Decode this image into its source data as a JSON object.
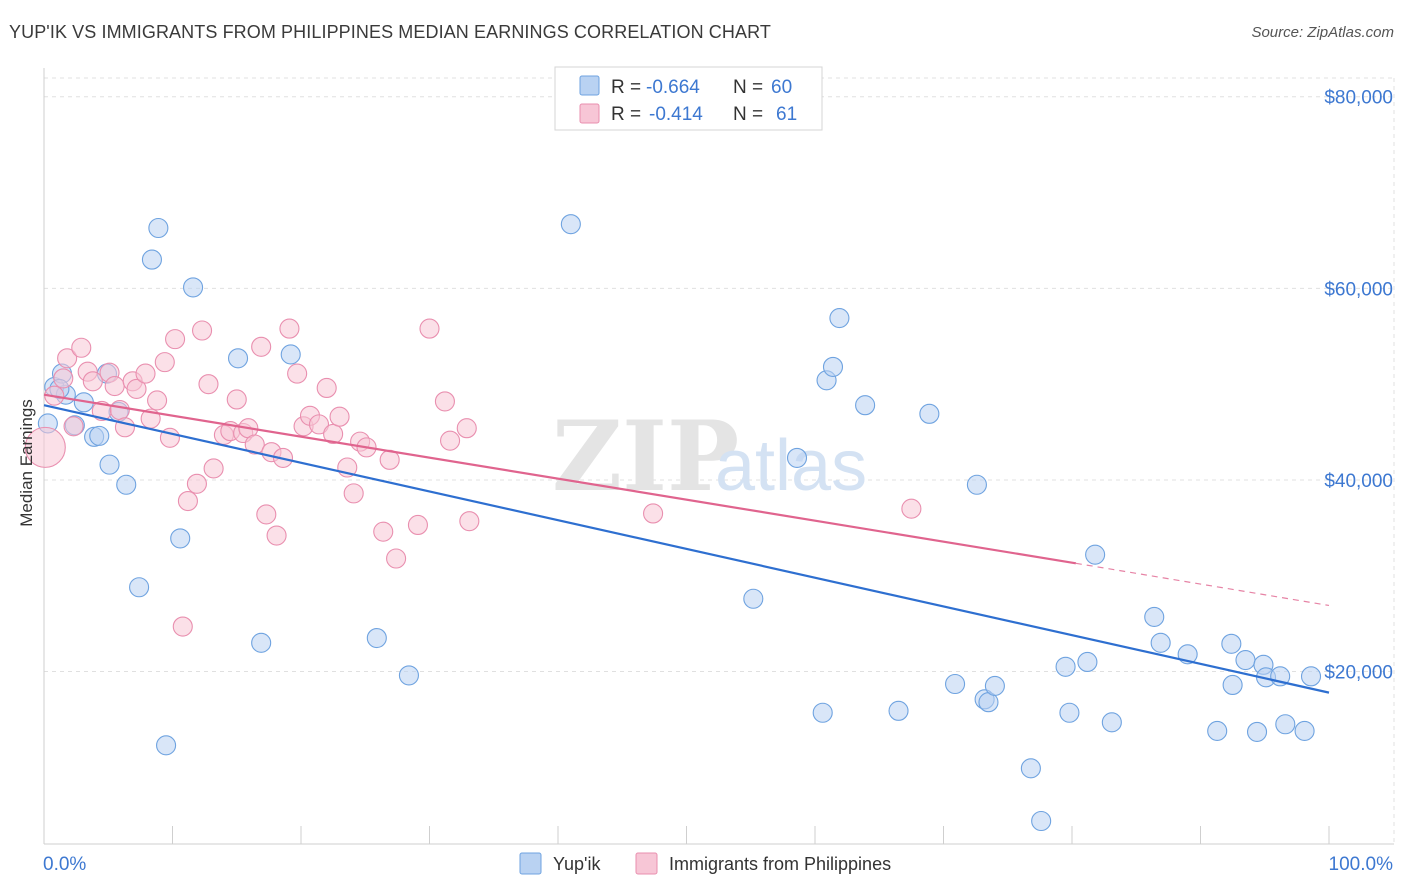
{
  "title": "YUP'IK VS IMMIGRANTS FROM PHILIPPINES MEDIAN EARNINGS CORRELATION CHART",
  "source": "Source: ZipAtlas.com",
  "watermark": {
    "zip": "ZIP",
    "atlas": "atlas"
  },
  "chart_data": {
    "type": "scatter",
    "xlabel": "",
    "ylabel": "Median Earnings",
    "xlim": [
      0,
      100
    ],
    "ylim": [
      2000,
      83000
    ],
    "x_tick_labels": [
      "0.0%",
      "100.0%"
    ],
    "y_ticks": [
      20000,
      40000,
      60000,
      80000
    ],
    "y_tick_labels": [
      "$20,000",
      "$40,000",
      "$60,000",
      "$80,000"
    ],
    "grid": true,
    "legend_position": "top-center",
    "legend": [
      {
        "r_label": "R =",
        "r_value": "-0.664",
        "n_label": "N =",
        "n_value": "60"
      },
      {
        "r_label": "R =",
        "r_value": "-0.414",
        "n_label": "N =",
        "n_value": "61"
      }
    ],
    "series": [
      {
        "name": "Yup'ik",
        "color": "#6fa3e0",
        "fill": "#b9d2f2",
        "line_color": "#2e6fd0",
        "trend": {
          "x": [
            0,
            100
          ],
          "y": [
            47800,
            17800
          ]
        },
        "points": [
          [
            0.3,
            45900
          ],
          [
            0.8,
            49700
          ],
          [
            1.4,
            51100
          ],
          [
            1.7,
            48900
          ],
          [
            2.4,
            45700
          ],
          [
            3.1,
            48100
          ],
          [
            3.9,
            44500
          ],
          [
            4.3,
            44600
          ],
          [
            4.9,
            51100
          ],
          [
            5.1,
            41600
          ],
          [
            5.8,
            47100
          ],
          [
            6.4,
            39500
          ],
          [
            7.4,
            28800
          ],
          [
            8.4,
            63000
          ],
          [
            8.9,
            66300
          ],
          [
            9.5,
            12300
          ],
          [
            10.6,
            33900
          ],
          [
            11.6,
            60100
          ],
          [
            15.1,
            52700
          ],
          [
            16.9,
            23000
          ],
          [
            19.2,
            53100
          ],
          [
            25.9,
            23500
          ],
          [
            28.4,
            19600
          ],
          [
            41.0,
            66700
          ],
          [
            55.2,
            27600
          ],
          [
            58.6,
            42300
          ],
          [
            60.6,
            15700
          ],
          [
            60.9,
            50400
          ],
          [
            61.4,
            51800
          ],
          [
            61.9,
            56900
          ],
          [
            63.9,
            47800
          ],
          [
            66.5,
            15900
          ],
          [
            68.9,
            46900
          ],
          [
            70.9,
            18700
          ],
          [
            72.6,
            39500
          ],
          [
            73.2,
            17100
          ],
          [
            73.5,
            16800
          ],
          [
            74.0,
            18500
          ],
          [
            76.8,
            9900
          ],
          [
            77.6,
            4400
          ],
          [
            79.5,
            20500
          ],
          [
            79.8,
            15700
          ],
          [
            81.2,
            21000
          ],
          [
            81.8,
            32200
          ],
          [
            83.1,
            14700
          ],
          [
            86.4,
            25700
          ],
          [
            86.9,
            23000
          ],
          [
            89.0,
            21800
          ],
          [
            91.3,
            13800
          ],
          [
            92.4,
            22900
          ],
          [
            92.5,
            18600
          ],
          [
            93.5,
            21200
          ],
          [
            94.4,
            13700
          ],
          [
            94.9,
            20700
          ],
          [
            95.1,
            19400
          ],
          [
            96.2,
            19500
          ],
          [
            96.6,
            14500
          ],
          [
            98.1,
            13800
          ],
          [
            98.6,
            19500
          ],
          [
            1.2,
            49500
          ]
        ]
      },
      {
        "name": "Immigrants from Philippines",
        "color": "#e98faf",
        "fill": "#f7c6d6",
        "line_color": "#e0648e",
        "trend": {
          "x": [
            0,
            80.3
          ],
          "y": [
            48900,
            31300
          ]
        },
        "trend_ext": {
          "x": [
            80.3,
            100
          ],
          "y": [
            31300,
            26900
          ]
        },
        "points": [
          [
            0.1,
            43400
          ],
          [
            0.8,
            48800
          ],
          [
            1.5,
            50600
          ],
          [
            1.8,
            52700
          ],
          [
            2.3,
            45600
          ],
          [
            2.9,
            53800
          ],
          [
            3.4,
            51300
          ],
          [
            3.8,
            50300
          ],
          [
            4.5,
            47200
          ],
          [
            5.1,
            51200
          ],
          [
            5.5,
            49800
          ],
          [
            5.9,
            47300
          ],
          [
            6.3,
            45500
          ],
          [
            6.9,
            50300
          ],
          [
            7.2,
            49500
          ],
          [
            7.9,
            51100
          ],
          [
            8.3,
            46400
          ],
          [
            8.8,
            48300
          ],
          [
            9.4,
            52300
          ],
          [
            9.8,
            44400
          ],
          [
            10.2,
            54700
          ],
          [
            10.8,
            24700
          ],
          [
            11.2,
            37800
          ],
          [
            11.9,
            39600
          ],
          [
            12.3,
            55600
          ],
          [
            12.8,
            50000
          ],
          [
            13.2,
            41200
          ],
          [
            14.0,
            44700
          ],
          [
            14.5,
            45100
          ],
          [
            15.0,
            48400
          ],
          [
            15.5,
            44900
          ],
          [
            15.9,
            45400
          ],
          [
            16.4,
            43700
          ],
          [
            16.9,
            53900
          ],
          [
            17.3,
            36400
          ],
          [
            17.7,
            42900
          ],
          [
            18.1,
            34200
          ],
          [
            18.6,
            42300
          ],
          [
            19.1,
            55800
          ],
          [
            19.7,
            51100
          ],
          [
            20.2,
            45600
          ],
          [
            20.7,
            46700
          ],
          [
            21.4,
            45800
          ],
          [
            22.0,
            49600
          ],
          [
            22.5,
            44800
          ],
          [
            23.0,
            46600
          ],
          [
            23.6,
            41300
          ],
          [
            24.1,
            38600
          ],
          [
            24.6,
            44000
          ],
          [
            25.1,
            43400
          ],
          [
            26.4,
            34600
          ],
          [
            26.9,
            42100
          ],
          [
            27.4,
            31800
          ],
          [
            29.1,
            35300
          ],
          [
            30.0,
            55800
          ],
          [
            31.2,
            48200
          ],
          [
            31.6,
            44100
          ],
          [
            32.9,
            45400
          ],
          [
            33.1,
            35700
          ],
          [
            47.4,
            36500
          ],
          [
            67.5,
            37000
          ]
        ]
      }
    ]
  }
}
